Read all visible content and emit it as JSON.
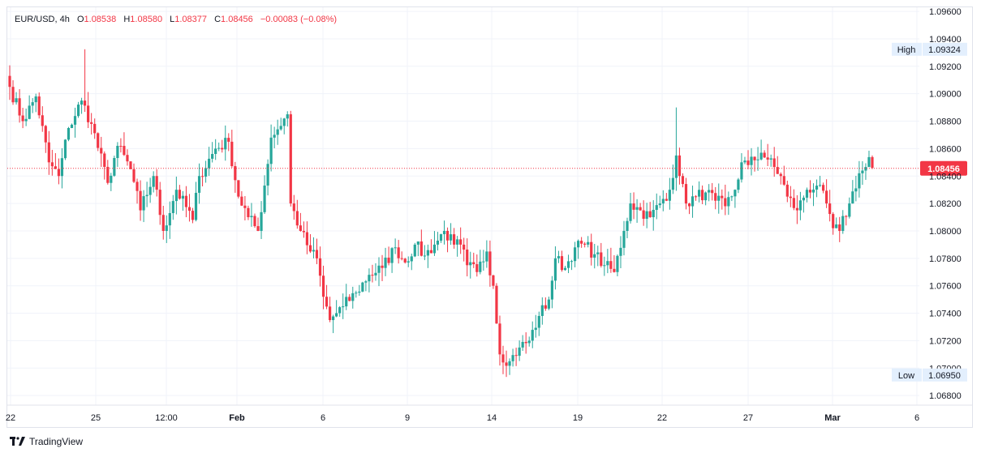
{
  "header": {
    "symbol": "EUR/USD",
    "interval": "4h",
    "open_label": "O",
    "open": "1.08538",
    "high_label": "H",
    "high": "1.08580",
    "low_label": "L",
    "low": "1.08377",
    "close_label": "C",
    "close": "1.08456",
    "change": "−0.00083 (−0.08%)"
  },
  "branding": {
    "name": "TradingView",
    "icon": "tradingview-logo-icon"
  },
  "colors": {
    "up": "#26a69a",
    "down": "#f23645",
    "grid": "#f0f3fa",
    "axis_text": "#131722"
  },
  "chart_data": {
    "type": "candlestick",
    "title": "EUR/USD, 4h",
    "x_tick_labels": [
      "22",
      "25",
      "12:00",
      "Feb",
      "6",
      "9",
      "14",
      "19",
      "22",
      "27",
      "Mar",
      "6"
    ],
    "y_tick_labels": [
      "1.09600",
      "1.09400",
      "1.09200",
      "1.09000",
      "1.08800",
      "1.08600",
      "1.08400",
      "1.08200",
      "1.08000",
      "1.07800",
      "1.07600",
      "1.07400",
      "1.07200",
      "1.07000",
      "1.06800"
    ],
    "y_range": [
      1.0673,
      1.0963
    ],
    "last_price": "1.08456",
    "high_marker": {
      "label": "High",
      "value": "1.09324"
    },
    "low_marker": {
      "label": "Low",
      "value": "1.06950"
    },
    "anchors": [
      [
        0,
        1.0905
      ],
      [
        4,
        1.088
      ],
      [
        8,
        1.0898
      ],
      [
        12,
        1.085
      ],
      [
        15,
        1.084
      ],
      [
        18,
        1.0875
      ],
      [
        22,
        1.0895
      ],
      [
        25,
        1.0878
      ],
      [
        30,
        1.0835
      ],
      [
        33,
        1.0862
      ],
      [
        37,
        1.0845
      ],
      [
        40,
        1.0815
      ],
      [
        44,
        1.084
      ],
      [
        47,
        1.08
      ],
      [
        51,
        1.083
      ],
      [
        56,
        1.0808
      ],
      [
        58,
        1.084
      ],
      [
        63,
        1.086
      ],
      [
        67,
        1.0865
      ],
      [
        70,
        1.0825
      ],
      [
        73,
        1.081
      ],
      [
        76,
        1.08
      ],
      [
        80,
        1.0868
      ],
      [
        85,
        1.0885
      ],
      [
        86,
        1.082
      ],
      [
        89,
        1.08
      ],
      [
        92,
        1.0785
      ],
      [
        94,
        1.078
      ],
      [
        96,
        1.0752
      ],
      [
        98,
        1.0735
      ],
      [
        102,
        1.0745
      ],
      [
        106,
        1.0755
      ],
      [
        110,
        1.0768
      ],
      [
        114,
        1.0773
      ],
      [
        118,
        1.0788
      ],
      [
        121,
        1.0777
      ],
      [
        124,
        1.079
      ],
      [
        127,
        1.0782
      ],
      [
        130,
        1.079
      ],
      [
        133,
        1.08
      ],
      [
        136,
        1.079
      ],
      [
        138,
        1.079
      ],
      [
        140,
        1.0775
      ],
      [
        143,
        1.077
      ],
      [
        146,
        1.0785
      ],
      [
        148,
        1.076
      ],
      [
        150,
        1.071
      ],
      [
        153,
        1.0705
      ],
      [
        156,
        1.0715
      ],
      [
        159,
        1.072
      ],
      [
        162,
        1.0738
      ],
      [
        165,
        1.075
      ],
      [
        167,
        1.078
      ],
      [
        170,
        1.0773
      ],
      [
        173,
        1.0788
      ],
      [
        176,
        1.079
      ],
      [
        179,
        1.0783
      ],
      [
        182,
        1.0775
      ],
      [
        185,
        1.077
      ],
      [
        188,
        1.08
      ],
      [
        190,
        1.082
      ],
      [
        193,
        1.0815
      ],
      [
        196,
        1.081
      ],
      [
        199,
        1.082
      ],
      [
        202,
        1.083
      ],
      [
        204,
        1.0855
      ],
      [
        205,
        1.084
      ],
      [
        207,
        1.082
      ],
      [
        210,
        1.0825
      ],
      [
        213,
        1.0828
      ],
      [
        216,
        1.0822
      ],
      [
        219,
        1.0818
      ],
      [
        222,
        1.083
      ],
      [
        224,
        1.085
      ],
      [
        226,
        1.0848
      ],
      [
        230,
        1.0857
      ],
      [
        232,
        1.0852
      ],
      [
        236,
        1.084
      ],
      [
        238,
        1.0825
      ],
      [
        241,
        1.0815
      ],
      [
        244,
        1.083
      ],
      [
        247,
        1.0833
      ],
      [
        250,
        1.082
      ],
      [
        252,
        1.0802
      ],
      [
        254,
        1.08
      ],
      [
        257,
        1.082
      ],
      [
        260,
        1.0842
      ],
      [
        263,
        1.0848
      ],
      [
        264,
        1.0846
      ]
    ]
  }
}
